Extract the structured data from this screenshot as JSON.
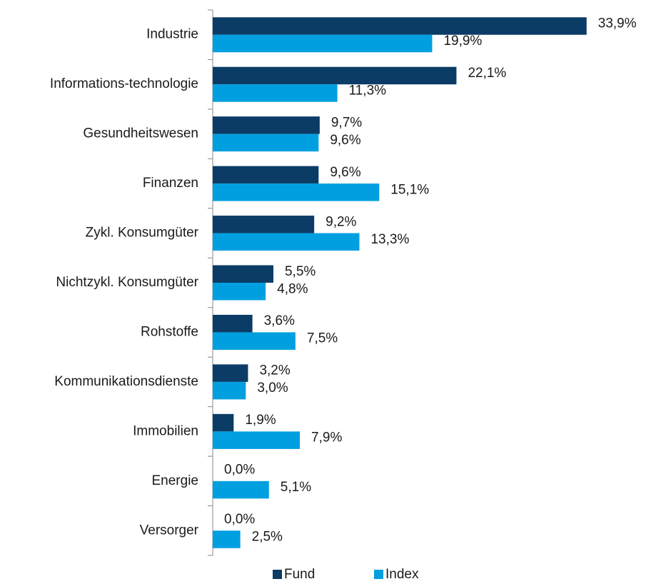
{
  "chart_data": {
    "type": "hbar",
    "categories": [
      "Industrie",
      "Informations-technologie",
      "Gesundheitswesen",
      "Finanzen",
      "Zykl. Konsumgüter",
      "Nichtzykl. Konsumgüter",
      "Rohstoffe",
      "Kommunikationsdienste",
      "Immobilien",
      "Energie",
      "Versorger"
    ],
    "series": [
      {
        "name": "Fund",
        "color": "#0b3c66",
        "values": [
          33.9,
          22.1,
          9.7,
          9.6,
          9.2,
          5.5,
          3.6,
          3.2,
          1.9,
          0.0,
          0.0
        ],
        "value_labels": [
          "33,9%",
          "22,1%",
          "9,7%",
          "9,6%",
          "9,2%",
          "5,5%",
          "3,6%",
          "3,2%",
          "1,9%",
          "0,0%",
          "0,0%"
        ]
      },
      {
        "name": "Index",
        "color": "#009fe0",
        "values": [
          19.9,
          11.3,
          9.6,
          15.1,
          13.3,
          4.8,
          7.5,
          3.0,
          7.9,
          5.1,
          2.5
        ],
        "value_labels": [
          "19,9%",
          "11,3%",
          "9,6%",
          "15,1%",
          "13,3%",
          "4,8%",
          "7,5%",
          "3,0%",
          "7,9%",
          "5,1%",
          "2,5%"
        ]
      }
    ],
    "xlim": [
      0,
      40
    ],
    "legend": "bottom"
  }
}
